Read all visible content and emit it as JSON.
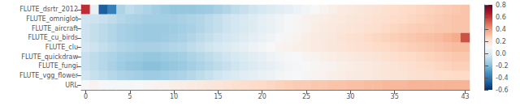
{
  "chart_data": {
    "type": "heatmap",
    "categories": [
      "FLUTE_dsrtr_2012",
      "FLUTE_omniglot",
      "FLUTE_aircraft",
      "FLUTE_cu_birds",
      "FLUTE_clu",
      "FLUTE_quickdraw",
      "FLUTE_fungi",
      "FLUTE_vgg_flower",
      "URL"
    ],
    "x": [
      0,
      1,
      2,
      3,
      4,
      5,
      6,
      7,
      8,
      9,
      10,
      11,
      12,
      13,
      14,
      15,
      16,
      17,
      18,
      19,
      20,
      21,
      22,
      23,
      24,
      25,
      26,
      27,
      28,
      29,
      30,
      31,
      32,
      33,
      34,
      35,
      36,
      37,
      38,
      39,
      40,
      41,
      42,
      43
    ],
    "xticks": [
      0,
      5,
      10,
      15,
      20,
      25,
      30,
      35,
      43
    ],
    "colorbar_range": [
      -0.6,
      0.8
    ],
    "colorbar_ticks": [
      0.8,
      0.6,
      0.4,
      0.2,
      {
        "value": 0,
        "label": "0.0"
      },
      -0.2,
      -0.4,
      -0.6
    ],
    "colors": [
      "#053061",
      "#2166ac",
      "#4393c3",
      "#92c5de",
      "#d1e5f0",
      "#f7f7f7",
      "#fddbc7",
      "#f4a582",
      "#d6604d",
      "#b2182b",
      "#67001f"
    ],
    "values": [
      [
        0.62,
        0.05,
        -0.48,
        -0.38,
        -0.12,
        -0.08,
        -0.1,
        -0.12,
        -0.14,
        -0.16,
        -0.17,
        -0.17,
        -0.17,
        -0.16,
        -0.15,
        -0.13,
        -0.11,
        -0.08,
        -0.06,
        -0.04,
        -0.02,
        0.0,
        0.02,
        0.04,
        0.06,
        0.08,
        0.1,
        0.12,
        0.14,
        0.16,
        0.17,
        0.18,
        0.19,
        0.2,
        0.21,
        0.22,
        0.23,
        0.24,
        0.25,
        0.26,
        0.27,
        0.28,
        0.29,
        0.3
      ],
      [
        -0.04,
        -0.05,
        -0.06,
        -0.08,
        -0.1,
        -0.12,
        -0.13,
        -0.14,
        -0.14,
        -0.14,
        -0.14,
        -0.13,
        -0.12,
        -0.11,
        -0.09,
        -0.07,
        -0.05,
        -0.03,
        -0.01,
        0.01,
        0.03,
        0.05,
        0.07,
        0.09,
        0.11,
        0.13,
        0.14,
        0.15,
        0.16,
        0.17,
        0.18,
        0.19,
        0.2,
        0.21,
        0.22,
        0.23,
        0.24,
        0.25,
        0.26,
        0.27,
        0.28,
        0.29,
        0.3,
        0.3
      ],
      [
        -0.05,
        -0.07,
        -0.09,
        -0.11,
        -0.13,
        -0.14,
        -0.15,
        -0.16,
        -0.16,
        -0.16,
        -0.15,
        -0.14,
        -0.13,
        -0.11,
        -0.09,
        -0.07,
        -0.05,
        -0.03,
        -0.01,
        0.01,
        0.03,
        0.05,
        0.07,
        0.09,
        0.11,
        0.13,
        0.15,
        0.16,
        0.17,
        0.18,
        0.19,
        0.2,
        0.21,
        0.22,
        0.24,
        0.25,
        0.26,
        0.27,
        0.28,
        0.28,
        0.29,
        0.29,
        0.3,
        0.3
      ],
      [
        -0.05,
        -0.07,
        -0.09,
        -0.11,
        -0.13,
        -0.14,
        -0.15,
        -0.16,
        -0.16,
        -0.15,
        -0.14,
        -0.13,
        -0.11,
        -0.09,
        -0.07,
        -0.05,
        -0.03,
        -0.01,
        0.01,
        0.03,
        0.05,
        0.07,
        0.09,
        0.11,
        0.13,
        0.15,
        0.16,
        0.17,
        0.18,
        0.2,
        0.21,
        0.22,
        0.24,
        0.25,
        0.26,
        0.27,
        0.28,
        0.29,
        0.3,
        0.31,
        0.32,
        0.34,
        0.36,
        0.55
      ],
      [
        -0.03,
        -0.05,
        -0.07,
        -0.09,
        -0.11,
        -0.12,
        -0.13,
        -0.13,
        -0.13,
        -0.12,
        -0.11,
        -0.1,
        -0.08,
        -0.06,
        -0.04,
        -0.02,
        0.0,
        0.02,
        0.04,
        0.06,
        0.08,
        0.1,
        0.12,
        0.13,
        0.14,
        0.15,
        0.16,
        0.17,
        0.18,
        0.19,
        0.2,
        0.21,
        0.22,
        0.23,
        0.24,
        0.25,
        0.26,
        0.27,
        0.28,
        0.29,
        0.3,
        0.31,
        0.32,
        0.32
      ],
      [
        -0.06,
        -0.08,
        -0.1,
        -0.12,
        -0.14,
        -0.15,
        -0.16,
        -0.17,
        -0.17,
        -0.16,
        -0.15,
        -0.14,
        -0.12,
        -0.1,
        -0.08,
        -0.06,
        -0.04,
        -0.02,
        0.0,
        0.02,
        0.04,
        0.06,
        0.08,
        0.09,
        0.1,
        0.12,
        0.13,
        0.14,
        0.15,
        0.16,
        0.17,
        0.18,
        0.19,
        0.2,
        0.21,
        0.22,
        0.23,
        0.24,
        0.25,
        0.26,
        0.27,
        0.28,
        0.29,
        0.29
      ],
      [
        -0.06,
        -0.08,
        -0.1,
        -0.13,
        -0.15,
        -0.17,
        -0.18,
        -0.19,
        -0.19,
        -0.18,
        -0.17,
        -0.16,
        -0.14,
        -0.12,
        -0.1,
        -0.08,
        -0.06,
        -0.04,
        -0.02,
        0.0,
        0.02,
        0.04,
        0.06,
        0.08,
        0.09,
        0.1,
        0.11,
        0.12,
        0.13,
        0.14,
        0.15,
        0.16,
        0.17,
        0.18,
        0.19,
        0.2,
        0.21,
        0.22,
        0.23,
        0.24,
        0.25,
        0.26,
        0.27,
        0.27
      ],
      [
        -0.04,
        -0.06,
        -0.08,
        -0.1,
        -0.12,
        -0.13,
        -0.14,
        -0.15,
        -0.15,
        -0.14,
        -0.13,
        -0.12,
        -0.1,
        -0.08,
        -0.06,
        -0.04,
        -0.02,
        0.0,
        0.02,
        0.03,
        0.05,
        0.06,
        0.08,
        0.09,
        0.1,
        0.11,
        0.12,
        0.13,
        0.14,
        0.15,
        0.16,
        0.17,
        0.17,
        0.18,
        0.19,
        0.2,
        0.2,
        0.21,
        0.22,
        0.22,
        0.23,
        0.23,
        0.24,
        0.24
      ],
      [
        0.1,
        0.12,
        0.1,
        0.09,
        0.09,
        0.09,
        0.1,
        0.11,
        0.12,
        0.13,
        0.14,
        0.15,
        0.16,
        0.17,
        0.18,
        0.19,
        0.2,
        0.21,
        0.22,
        0.23,
        0.24,
        0.25,
        0.26,
        0.27,
        0.28,
        0.28,
        0.29,
        0.29,
        0.3,
        0.3,
        0.31,
        0.31,
        0.32,
        0.32,
        0.33,
        0.33,
        0.33,
        0.34,
        0.34,
        0.34,
        0.34,
        0.34,
        0.34,
        0.34
      ]
    ]
  }
}
